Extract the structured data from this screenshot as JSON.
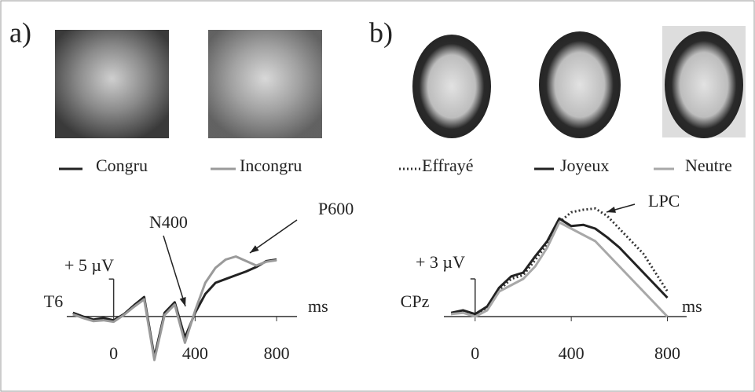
{
  "chart_data": [
    {
      "type": "line",
      "panel_label": "a)",
      "channel": "T6",
      "x_label": "ms",
      "annotations": [
        "N400",
        "P600"
      ],
      "x": [
        -200,
        -150,
        -100,
        -50,
        0,
        50,
        100,
        150,
        200,
        250,
        300,
        350,
        400,
        450,
        500,
        550,
        600,
        650,
        700,
        750,
        800
      ],
      "series": [
        {
          "name": "Congru",
          "color": "#222222",
          "style": "solid",
          "values": [
            0.5,
            0,
            -0.4,
            -0.2,
            -0.5,
            0.3,
            1.5,
            2.6,
            -5.4,
            0.5,
            1.9,
            -2.8,
            0.5,
            3.0,
            4.5,
            5.0,
            5.5,
            6.0,
            6.6,
            7.4,
            7.6
          ]
        },
        {
          "name": "Incongru",
          "color": "#9a9a9a",
          "style": "solid",
          "values": [
            0.3,
            -0.2,
            -0.6,
            -0.5,
            -0.7,
            0.2,
            1.3,
            2.3,
            -5.8,
            0.2,
            1.6,
            -3.5,
            0.8,
            4.5,
            6.5,
            7.6,
            8.0,
            7.4,
            6.8,
            7.3,
            7.5
          ]
        }
      ],
      "xlim": [
        -230,
        900
      ],
      "ylim": [
        -6.5,
        9
      ],
      "xticks": [
        0,
        400,
        800
      ],
      "yticks": [
        {
          "value": 5,
          "label": "+ 5 µV"
        }
      ],
      "grid": false
    },
    {
      "type": "line",
      "panel_label": "b)",
      "channel": "CPz",
      "x_label": "ms",
      "annotations": [
        "LPC"
      ],
      "x": [
        -100,
        -50,
        0,
        50,
        100,
        150,
        200,
        250,
        300,
        350,
        400,
        450,
        500,
        550,
        600,
        650,
        700,
        750,
        800
      ],
      "series": [
        {
          "name": "Effrayé",
          "color": "#333333",
          "style": "dotted",
          "values": [
            0.2,
            0.4,
            0.1,
            0.7,
            2.1,
            3.0,
            3.3,
            4.5,
            5.8,
            7.5,
            8.3,
            8.5,
            8.6,
            8.0,
            7.0,
            6.0,
            5.0,
            3.5,
            2.0
          ]
        },
        {
          "name": "Joyeux",
          "color": "#222222",
          "style": "solid",
          "values": [
            0.3,
            0.5,
            0.2,
            0.8,
            2.3,
            3.2,
            3.5,
            4.8,
            6.0,
            7.8,
            7.2,
            7.3,
            7.0,
            6.3,
            5.5,
            4.5,
            3.5,
            2.5,
            1.5
          ]
        },
        {
          "name": "Neutre",
          "color": "#a8a8a8",
          "style": "solid",
          "values": [
            0.2,
            0.3,
            0,
            0.5,
            2.0,
            2.5,
            3.0,
            4.0,
            5.5,
            7.5,
            7.0,
            6.5,
            6.0,
            5.0,
            4.0,
            3.0,
            2.0,
            1.0,
            0
          ]
        }
      ],
      "xlim": [
        -130,
        880
      ],
      "ylim": [
        -1.5,
        9.5
      ],
      "xticks": [
        0,
        400,
        800
      ],
      "yticks": [
        {
          "value": 3,
          "label": "+ 3 µV"
        }
      ],
      "grid": false
    }
  ]
}
